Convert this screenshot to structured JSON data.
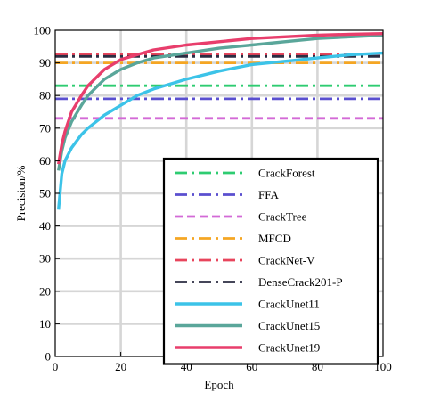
{
  "chart_data": {
    "type": "line",
    "xlabel": "Epoch",
    "ylabel": "Precision/%",
    "xlim": [
      0,
      100
    ],
    "ylim": [
      0,
      100
    ],
    "xticks": [
      0,
      20,
      40,
      60,
      80,
      100
    ],
    "yticks": [
      0,
      10,
      20,
      30,
      40,
      50,
      60,
      70,
      80,
      90,
      100
    ],
    "grid": true,
    "legend_position": "bottom-right",
    "series": [
      {
        "name": "CrackForest",
        "style": "dashdot",
        "color": "#2ecc71",
        "values": [
          [
            0,
            83
          ],
          [
            100,
            83
          ]
        ]
      },
      {
        "name": "FFA",
        "style": "dashdot",
        "color": "#5a4fcf",
        "values": [
          [
            0,
            79
          ],
          [
            100,
            79
          ]
        ]
      },
      {
        "name": "CrackTree",
        "style": "dashed",
        "color": "#d36ad6",
        "values": [
          [
            0,
            73
          ],
          [
            100,
            73
          ]
        ]
      },
      {
        "name": "MFCD",
        "style": "dashdot",
        "color": "#f5a623",
        "values": [
          [
            0,
            90
          ],
          [
            100,
            90
          ]
        ]
      },
      {
        "name": "CrackNet-V",
        "style": "dashdot",
        "color": "#e8455c",
        "values": [
          [
            0,
            92.5
          ],
          [
            100,
            92.5
          ]
        ]
      },
      {
        "name": "DenseCrack201-P",
        "style": "dashdot",
        "color": "#2b2d42",
        "values": [
          [
            0,
            92
          ],
          [
            100,
            92
          ]
        ]
      },
      {
        "name": "CrackUnet11",
        "style": "solid",
        "color": "#3cc3e8",
        "values": [
          [
            1,
            45
          ],
          [
            2,
            56
          ],
          [
            3,
            60
          ],
          [
            5,
            64
          ],
          [
            8,
            68
          ],
          [
            10,
            70
          ],
          [
            15,
            74
          ],
          [
            20,
            77
          ],
          [
            25,
            80
          ],
          [
            30,
            82
          ],
          [
            40,
            85
          ],
          [
            50,
            87.5
          ],
          [
            60,
            89.5
          ],
          [
            70,
            90.5
          ],
          [
            80,
            91.5
          ],
          [
            90,
            92.5
          ],
          [
            100,
            93
          ]
        ]
      },
      {
        "name": "CrackUnet15",
        "style": "solid",
        "color": "#5aa69a",
        "values": [
          [
            1,
            57
          ],
          [
            2,
            63
          ],
          [
            3,
            67
          ],
          [
            5,
            72
          ],
          [
            8,
            77
          ],
          [
            10,
            80
          ],
          [
            15,
            85
          ],
          [
            20,
            88
          ],
          [
            25,
            90
          ],
          [
            30,
            91.5
          ],
          [
            40,
            93
          ],
          [
            50,
            94.5
          ],
          [
            60,
            95.5
          ],
          [
            70,
            96.5
          ],
          [
            80,
            97.5
          ],
          [
            90,
            98
          ],
          [
            100,
            98.5
          ]
        ]
      },
      {
        "name": "CrackUnet19",
        "style": "solid",
        "color": "#e83e6c",
        "values": [
          [
            1,
            59
          ],
          [
            2,
            65
          ],
          [
            3,
            69
          ],
          [
            5,
            75
          ],
          [
            8,
            80
          ],
          [
            10,
            83
          ],
          [
            15,
            88
          ],
          [
            20,
            91
          ],
          [
            25,
            92.5
          ],
          [
            30,
            94
          ],
          [
            40,
            95.5
          ],
          [
            50,
            96.5
          ],
          [
            60,
            97.5
          ],
          [
            70,
            98
          ],
          [
            80,
            98.5
          ],
          [
            90,
            98.8
          ],
          [
            100,
            99
          ]
        ]
      }
    ]
  }
}
